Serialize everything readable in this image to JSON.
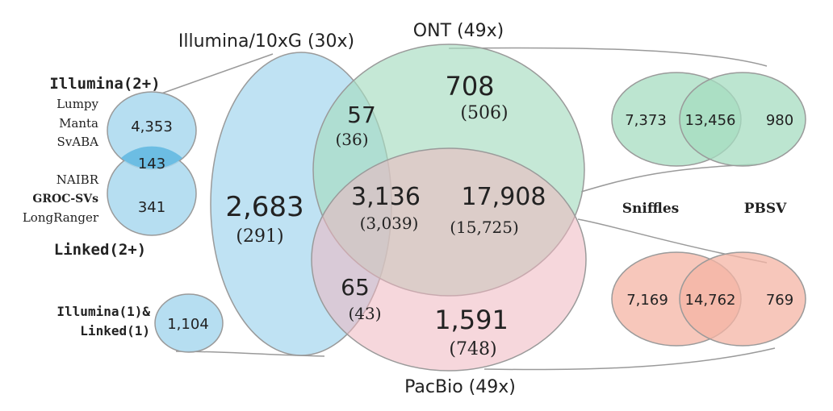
{
  "main_venn": {
    "illumina_label": "Illumina/10xG (30x)",
    "ont_label": "ONT (49x)",
    "pacbio_label": "PacBio (49x)",
    "illumina_only": "2,683",
    "illumina_only_sub": "(291)",
    "ont_only": "708",
    "ont_only_sub": "(506)",
    "pacbio_only": "1,591",
    "pacbio_only_sub": "(748)",
    "illumina_ont": "57",
    "illumina_ont_sub": "(36)",
    "illumina_pacbio": "65",
    "illumina_pacbio_sub": "(43)",
    "ont_pacbio": "17,908",
    "ont_pacbio_sub": "(15,725)",
    "all_three": "3,136",
    "all_three_sub": "(3,039)",
    "colors": {
      "illumina": "#a9d8ef",
      "ont": "#a6dcc0",
      "pacbio": "#eeb6c0"
    }
  },
  "left_venn": {
    "top_title": "Illumina(2+)",
    "top_tools": [
      "Lumpy",
      "Manta",
      "SvABA"
    ],
    "top_only": "4,353",
    "overlap": "143",
    "bottom_only": "341",
    "bottom_tools": [
      "NAIBR",
      "GROC-SVs",
      "LongRanger"
    ],
    "bottom_title": "Linked(2+)",
    "single_label_1": "Illumina(1)&",
    "single_label_2": "Linked(1)",
    "single_value": "1,104"
  },
  "ont_venn": {
    "left_only": "7,373",
    "overlap": "13,456",
    "right_only": "980",
    "left_tool": "Sniffles",
    "right_tool": "PBSV"
  },
  "pacbio_venn": {
    "left_only": "7,169",
    "overlap": "14,762",
    "right_only": "769"
  }
}
